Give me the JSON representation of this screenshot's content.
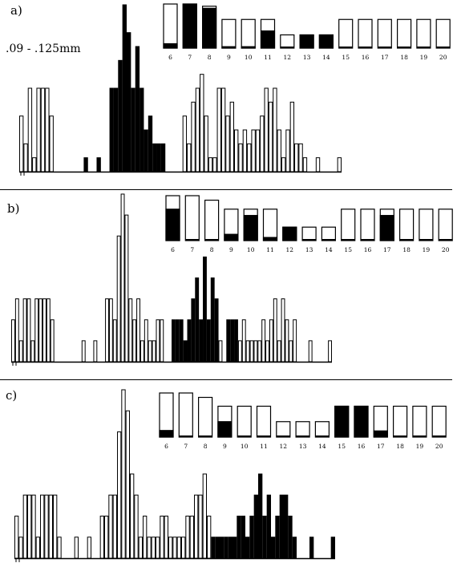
{
  "chart_data": [
    {
      "type": "bar",
      "panel_label": "a)",
      "annotation": ".09 - .125mm",
      "histogram": {
        "values": [
          4,
          2,
          6,
          1,
          6,
          6,
          6,
          4,
          0,
          0,
          0,
          0,
          0,
          0,
          0,
          1,
          0,
          0,
          1,
          0,
          0,
          6,
          6,
          8,
          12,
          10,
          6,
          9,
          6,
          3,
          4,
          2,
          2,
          2,
          0,
          0,
          0,
          0,
          4,
          2,
          5,
          6,
          7,
          4,
          1,
          1,
          6,
          6,
          4,
          5,
          3,
          2,
          3,
          2,
          3,
          3,
          4,
          6,
          5,
          6,
          3,
          1,
          3,
          5,
          2,
          2,
          1,
          0,
          0,
          1,
          0,
          0,
          0,
          0,
          1
        ],
        "filled": [
          0,
          0,
          0,
          0,
          0,
          0,
          0,
          0,
          0,
          0,
          0,
          0,
          0,
          0,
          0,
          1,
          0,
          0,
          1,
          0,
          0,
          1,
          1,
          1,
          1,
          1,
          1,
          1,
          1,
          1,
          1,
          1,
          1,
          1,
          0,
          0,
          0,
          0,
          0,
          0,
          0,
          0,
          0,
          0,
          0,
          0,
          0,
          0,
          0,
          0,
          0,
          0,
          0,
          0,
          0,
          0,
          0,
          0,
          0,
          0,
          0,
          0,
          0,
          0,
          0,
          0,
          0,
          0,
          0,
          0,
          0,
          0,
          0,
          0,
          0
        ],
        "ymax": 12
      },
      "inset": {
        "categories": [
          "6",
          "7",
          "8",
          "9",
          "10",
          "11",
          "12",
          "13",
          "14",
          "15",
          "16",
          "17",
          "18",
          "19",
          "20"
        ],
        "filled_fraction": [
          0.1,
          1,
          0.95,
          0.05,
          0.05,
          0.6,
          0,
          1,
          1,
          0,
          0,
          0,
          0,
          0,
          0
        ],
        "box_height": [
          1,
          1,
          0.95,
          0.65,
          0.65,
          0.65,
          0.3,
          0.3,
          0.3,
          0.65,
          0.65,
          0.65,
          0.65,
          0.65,
          0.65
        ]
      }
    },
    {
      "type": "bar",
      "panel_label": "b)",
      "annotation": "",
      "histogram": {
        "values": [
          2,
          3,
          1,
          3,
          3,
          1,
          3,
          3,
          3,
          3,
          2,
          0,
          0,
          0,
          0,
          0,
          0,
          0,
          1,
          0,
          0,
          1,
          0,
          0,
          3,
          3,
          2,
          6,
          8,
          7,
          3,
          2,
          3,
          1,
          2,
          1,
          1,
          2,
          2,
          0,
          0,
          2,
          2,
          2,
          1,
          2,
          3,
          4,
          2,
          5,
          2,
          4,
          3,
          1,
          0,
          2,
          2,
          2,
          1,
          2,
          1,
          1,
          1,
          1,
          2,
          1,
          2,
          3,
          1,
          3,
          2,
          1,
          2,
          0,
          0,
          0,
          1,
          0,
          0,
          0,
          0,
          1
        ],
        "filled": [
          0,
          0,
          0,
          0,
          0,
          0,
          0,
          0,
          0,
          0,
          0,
          0,
          0,
          0,
          0,
          0,
          0,
          0,
          0,
          0,
          0,
          0,
          0,
          0,
          0,
          0,
          0,
          0,
          0,
          0,
          0,
          0,
          0,
          0,
          0,
          0,
          0,
          0,
          0,
          0,
          0,
          1,
          1,
          1,
          1,
          1,
          1,
          1,
          1,
          1,
          1,
          1,
          1,
          0,
          0,
          1,
          1,
          1,
          0,
          0,
          0,
          0,
          0,
          0,
          0,
          0,
          0,
          0,
          0,
          0,
          0,
          0,
          0,
          0,
          0,
          0,
          0,
          0,
          0,
          0,
          0,
          0
        ],
        "ymax": 8
      },
      "inset": {
        "categories": [
          "6",
          "7",
          "8",
          "9",
          "10",
          "11",
          "12",
          "13",
          "14",
          "15",
          "16",
          "17",
          "18",
          "19",
          "20"
        ],
        "filled_fraction": [
          0.7,
          0,
          0,
          0.2,
          0.8,
          0.1,
          1,
          0,
          0,
          0,
          0,
          0.8,
          0,
          0,
          0
        ],
        "box_height": [
          1,
          1,
          0.9,
          0.7,
          0.7,
          0.7,
          0.3,
          0.3,
          0.3,
          0.7,
          0.7,
          0.7,
          0.7,
          0.7,
          0.7
        ]
      }
    },
    {
      "type": "bar",
      "panel_label": "c)",
      "annotation": "",
      "histogram": {
        "values": [
          2,
          1,
          3,
          3,
          3,
          1,
          3,
          3,
          3,
          3,
          1,
          0,
          0,
          0,
          1,
          0,
          0,
          1,
          0,
          0,
          2,
          2,
          3,
          3,
          6,
          8,
          7,
          4,
          3,
          1,
          2,
          1,
          1,
          1,
          2,
          2,
          1,
          1,
          1,
          1,
          2,
          2,
          3,
          3,
          4,
          2,
          1,
          1,
          1,
          1,
          1,
          1,
          2,
          2,
          1,
          2,
          3,
          4,
          2,
          3,
          1,
          2,
          3,
          3,
          2,
          1,
          0,
          0,
          0,
          1,
          0,
          0,
          0,
          0,
          1
        ],
        "filled": [
          0,
          0,
          0,
          0,
          0,
          0,
          0,
          0,
          0,
          0,
          0,
          0,
          0,
          0,
          0,
          0,
          0,
          0,
          0,
          0,
          0,
          0,
          0,
          0,
          0,
          0,
          0,
          0,
          0,
          0,
          0,
          0,
          0,
          0,
          0,
          0,
          0,
          0,
          0,
          0,
          0,
          0,
          0,
          0,
          0,
          0,
          1,
          1,
          1,
          1,
          1,
          1,
          1,
          1,
          1,
          1,
          1,
          1,
          1,
          1,
          1,
          1,
          1,
          1,
          1,
          1,
          0,
          0,
          0,
          1,
          0,
          0,
          0,
          0,
          1
        ],
        "ymax": 8
      },
      "inset": {
        "categories": [
          "6",
          "7",
          "8",
          "9",
          "10",
          "11",
          "12",
          "13",
          "14",
          "15",
          "16",
          "17",
          "18",
          "19",
          "20"
        ],
        "filled_fraction": [
          0.15,
          0,
          0,
          0.5,
          0,
          0,
          0,
          0,
          0,
          1,
          1,
          0.2,
          0,
          0,
          0
        ],
        "box_height": [
          1,
          1,
          0.9,
          0.7,
          0.7,
          0.7,
          0.35,
          0.35,
          0.35,
          0.7,
          0.7,
          0.7,
          0.7,
          0.7,
          0.7
        ]
      }
    }
  ]
}
